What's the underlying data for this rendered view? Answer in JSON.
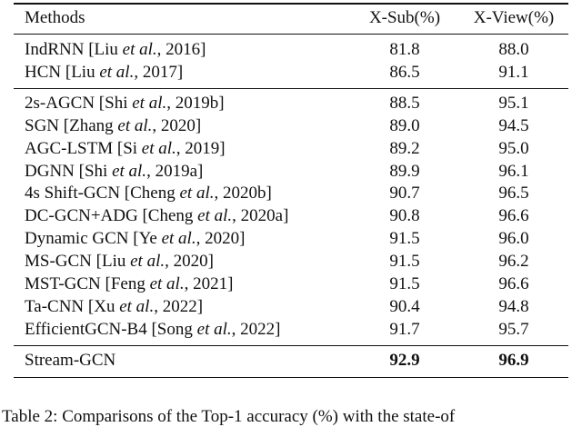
{
  "table": {
    "header": [
      "Methods",
      "X-Sub(%)",
      "X-View(%)"
    ],
    "groups": [
      [
        [
          [
            "IndRNN [Liu ",
            "et al.",
            ", 2016]"
          ],
          "81.8",
          "88.0"
        ],
        [
          [
            "HCN [Liu ",
            "et al.",
            ", 2017]"
          ],
          "86.5",
          "91.1"
        ]
      ],
      [
        [
          [
            "2s-AGCN [Shi ",
            "et al.",
            ", 2019b]"
          ],
          "88.5",
          "95.1"
        ],
        [
          [
            "SGN [Zhang ",
            "et al.",
            ", 2020]"
          ],
          "89.0",
          "94.5"
        ],
        [
          [
            "AGC-LSTM [Si ",
            "et al.",
            ", 2019]"
          ],
          "89.2",
          "95.0"
        ],
        [
          [
            "DGNN [Shi ",
            "et al.",
            ", 2019a]"
          ],
          "89.9",
          "96.1"
        ],
        [
          [
            "4s Shift-GCN [Cheng ",
            "et al.",
            ", 2020b]"
          ],
          "90.7",
          "96.5"
        ],
        [
          [
            "DC-GCN+ADG [Cheng ",
            "et al.",
            ", 2020a]"
          ],
          "90.8",
          "96.6"
        ],
        [
          [
            "Dynamic GCN [Ye ",
            "et al.",
            ", 2020]"
          ],
          "91.5",
          "96.0"
        ],
        [
          [
            "MS-GCN [Liu ",
            "et al.",
            ", 2020]"
          ],
          "91.5",
          "96.2"
        ],
        [
          [
            "MST-GCN [Feng ",
            "et al.",
            ", 2021]"
          ],
          "91.5",
          "96.6"
        ],
        [
          [
            "Ta-CNN [Xu ",
            "et al.",
            ", 2022]"
          ],
          "90.4",
          "94.8"
        ],
        [
          [
            "EfficientGCN-B4 [Song ",
            "et al.",
            ", 2022]"
          ],
          "91.7",
          "95.7"
        ]
      ],
      [
        [
          [
            "Stream-GCN"
          ],
          "92.9",
          "96.9"
        ]
      ]
    ],
    "caption": "Table 2: Comparisons of the Top-1 accuracy (%) with the state-of"
  }
}
